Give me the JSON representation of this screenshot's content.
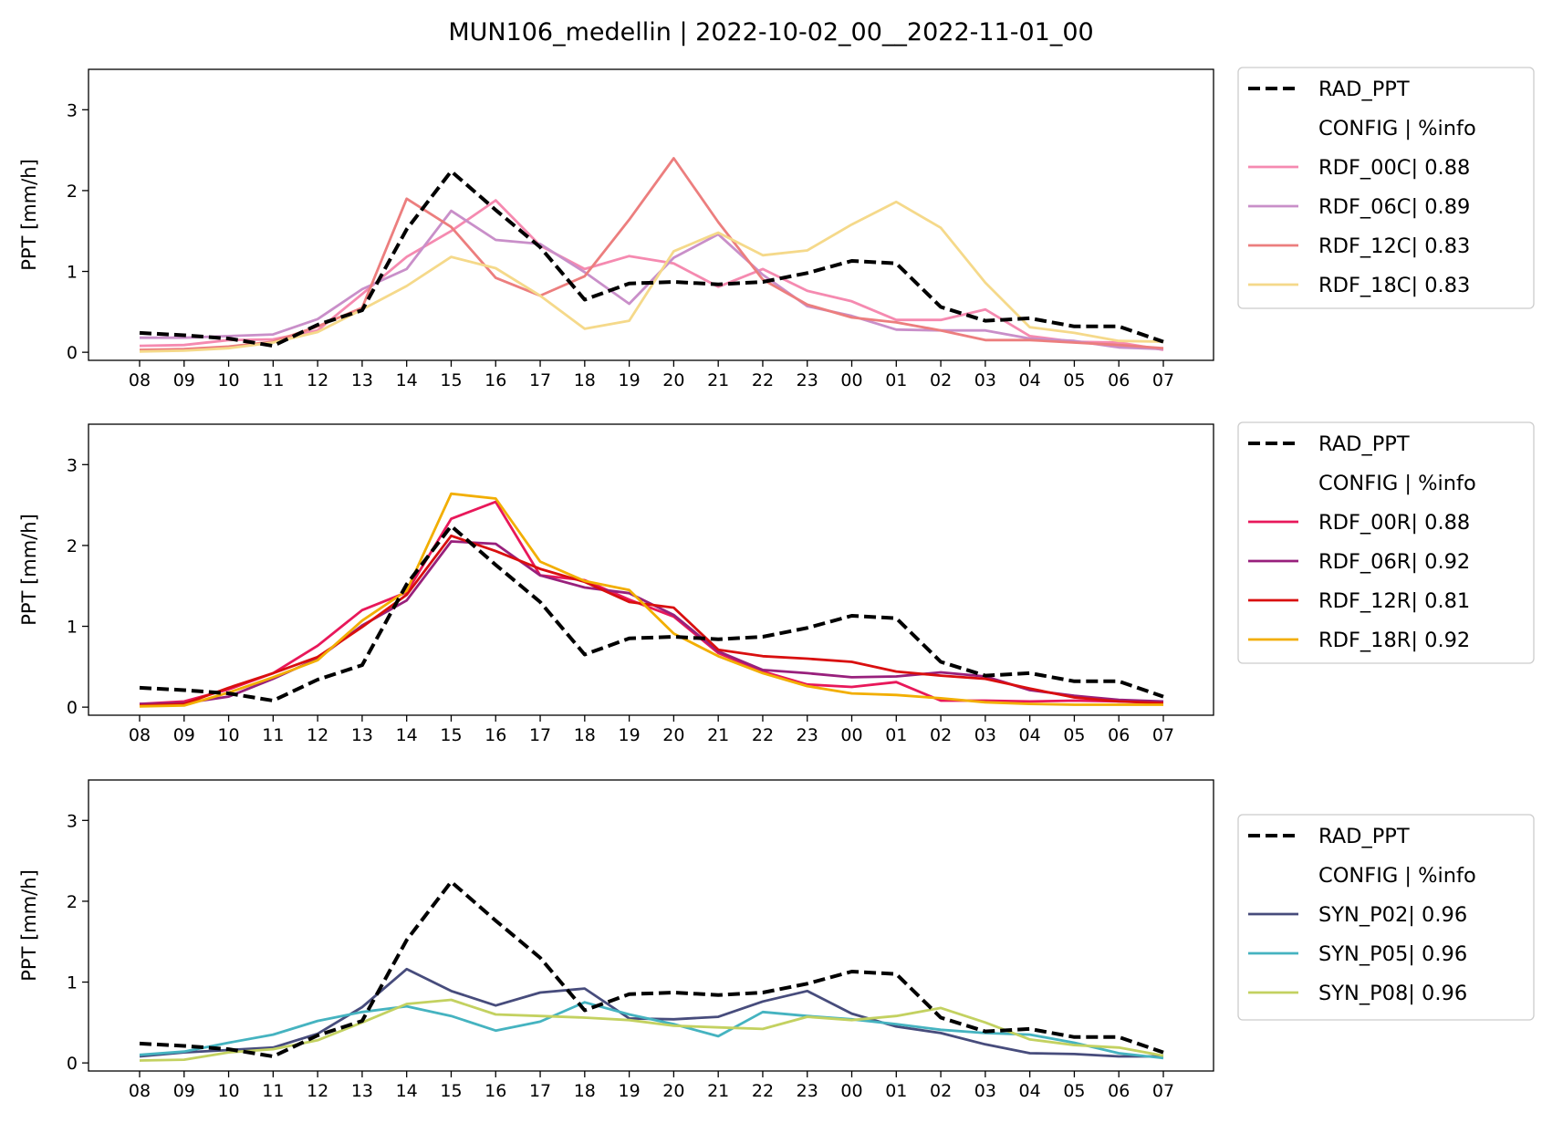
{
  "figure_title": "MUN106_medellin | 2022-10-02_00__2022-11-01_00",
  "chart_data": [
    {
      "type": "line",
      "ylabel": "PPT [mm/h]",
      "ylim": [
        -0.1,
        3.5
      ],
      "yticks": [
        "0",
        "1",
        "2",
        "3"
      ],
      "categories": [
        "08",
        "09",
        "10",
        "11",
        "12",
        "13",
        "14",
        "15",
        "16",
        "17",
        "18",
        "19",
        "20",
        "21",
        "22",
        "23",
        "00",
        "01",
        "02",
        "03",
        "04",
        "05",
        "06",
        "07"
      ],
      "legend_header": "CONFIG  | %info",
      "legend_placement": "outside-right",
      "series": [
        {
          "name": "RAD_PPT",
          "color": "#000000",
          "dashed": true,
          "values": [
            0.24,
            0.21,
            0.17,
            0.08,
            0.34,
            0.52,
            1.52,
            2.24,
            1.76,
            1.3,
            0.65,
            0.85,
            0.87,
            0.84,
            0.87,
            0.98,
            1.13,
            1.1,
            0.56,
            0.39,
            0.42,
            0.32,
            0.32,
            0.13
          ]
        },
        {
          "name": "RDF_00C| 0.88",
          "color": "#f58ab0",
          "values": [
            0.08,
            0.09,
            0.15,
            0.16,
            0.27,
            0.72,
            1.18,
            1.5,
            1.88,
            1.32,
            1.03,
            1.19,
            1.1,
            0.81,
            1.03,
            0.76,
            0.63,
            0.4,
            0.4,
            0.53,
            0.2,
            0.13,
            0.12,
            0.03
          ]
        },
        {
          "name": "RDF_06C| 0.89",
          "color": "#c98fc9",
          "values": [
            0.18,
            0.18,
            0.2,
            0.22,
            0.41,
            0.78,
            1.03,
            1.75,
            1.39,
            1.34,
            0.99,
            0.6,
            1.17,
            1.46,
            0.96,
            0.57,
            0.45,
            0.28,
            0.27,
            0.27,
            0.17,
            0.14,
            0.06,
            0.04
          ]
        },
        {
          "name": "RDF_12C| 0.83",
          "color": "#ec7e7e",
          "values": [
            0.03,
            0.04,
            0.07,
            0.13,
            0.32,
            0.55,
            1.9,
            1.55,
            0.92,
            0.7,
            0.94,
            1.64,
            2.4,
            1.61,
            0.9,
            0.59,
            0.43,
            0.37,
            0.27,
            0.15,
            0.15,
            0.12,
            0.09,
            0.05
          ]
        },
        {
          "name": "RDF_18C| 0.83",
          "color": "#f5d98a",
          "values": [
            0.01,
            0.02,
            0.05,
            0.12,
            0.25,
            0.53,
            0.82,
            1.18,
            1.04,
            0.7,
            0.29,
            0.39,
            1.25,
            1.48,
            1.2,
            1.26,
            1.58,
            1.86,
            1.54,
            0.86,
            0.31,
            0.24,
            0.14,
            0.13
          ]
        }
      ]
    },
    {
      "type": "line",
      "ylabel": "PPT [mm/h]",
      "ylim": [
        -0.1,
        3.5
      ],
      "yticks": [
        "0",
        "1",
        "2",
        "3"
      ],
      "categories": [
        "08",
        "09",
        "10",
        "11",
        "12",
        "13",
        "14",
        "15",
        "16",
        "17",
        "18",
        "19",
        "20",
        "21",
        "22",
        "23",
        "00",
        "01",
        "02",
        "03",
        "04",
        "05",
        "06",
        "07"
      ],
      "legend_header": "CONFIG  | %info",
      "legend_placement": "outside-right",
      "series": [
        {
          "name": "RAD_PPT",
          "color": "#000000",
          "dashed": true,
          "values": [
            0.24,
            0.21,
            0.17,
            0.08,
            0.34,
            0.52,
            1.52,
            2.24,
            1.76,
            1.3,
            0.65,
            0.85,
            0.87,
            0.84,
            0.87,
            0.98,
            1.13,
            1.1,
            0.56,
            0.39,
            0.42,
            0.32,
            0.32,
            0.13
          ]
        },
        {
          "name": "RDF_00R| 0.88",
          "color": "#e8185a",
          "values": [
            0.04,
            0.07,
            0.22,
            0.42,
            0.76,
            1.2,
            1.42,
            2.33,
            2.54,
            1.63,
            1.57,
            1.33,
            1.12,
            0.67,
            0.44,
            0.28,
            0.25,
            0.31,
            0.08,
            0.08,
            0.07,
            0.08,
            0.07,
            0.06
          ]
        },
        {
          "name": "RDF_06R| 0.92",
          "color": "#98207c",
          "values": [
            0.04,
            0.05,
            0.13,
            0.35,
            0.6,
            1.01,
            1.32,
            2.05,
            2.02,
            1.63,
            1.48,
            1.41,
            1.14,
            0.69,
            0.46,
            0.42,
            0.37,
            0.38,
            0.43,
            0.38,
            0.21,
            0.14,
            0.09,
            0.07
          ]
        },
        {
          "name": "RDF_12R| 0.81",
          "color": "#d90f0f",
          "values": [
            0.02,
            0.04,
            0.24,
            0.42,
            0.62,
            0.99,
            1.39,
            2.12,
            1.93,
            1.71,
            1.55,
            1.3,
            1.23,
            0.71,
            0.63,
            0.6,
            0.56,
            0.44,
            0.39,
            0.35,
            0.23,
            0.12,
            0.07,
            0.05
          ]
        },
        {
          "name": "RDF_18R| 0.92",
          "color": "#f2ae00",
          "values": [
            0.01,
            0.02,
            0.18,
            0.37,
            0.58,
            1.07,
            1.44,
            2.64,
            2.58,
            1.8,
            1.56,
            1.45,
            0.91,
            0.63,
            0.42,
            0.26,
            0.17,
            0.15,
            0.11,
            0.06,
            0.04,
            0.03,
            0.03,
            0.03
          ]
        }
      ]
    },
    {
      "type": "line",
      "ylabel": "PPT [mm/h]",
      "ylim": [
        -0.1,
        3.5
      ],
      "yticks": [
        "0",
        "1",
        "2",
        "3"
      ],
      "categories": [
        "08",
        "09",
        "10",
        "11",
        "12",
        "13",
        "14",
        "15",
        "16",
        "17",
        "18",
        "19",
        "20",
        "21",
        "22",
        "23",
        "00",
        "01",
        "02",
        "03",
        "04",
        "05",
        "06",
        "07"
      ],
      "legend_header": "CONFIG  | %info",
      "legend_placement": "outside-right",
      "series": [
        {
          "name": "RAD_PPT",
          "color": "#000000",
          "dashed": true,
          "values": [
            0.24,
            0.21,
            0.17,
            0.08,
            0.34,
            0.52,
            1.52,
            2.24,
            1.76,
            1.3,
            0.65,
            0.85,
            0.87,
            0.84,
            0.87,
            0.98,
            1.13,
            1.1,
            0.56,
            0.39,
            0.42,
            0.32,
            0.32,
            0.13
          ]
        },
        {
          "name": "SYN_P02| 0.96",
          "color": "#474c7c",
          "values": [
            0.08,
            0.13,
            0.16,
            0.19,
            0.36,
            0.69,
            1.16,
            0.89,
            0.71,
            0.87,
            0.92,
            0.55,
            0.54,
            0.57,
            0.76,
            0.89,
            0.61,
            0.45,
            0.37,
            0.23,
            0.12,
            0.11,
            0.08,
            0.08
          ]
        },
        {
          "name": "SYN_P05| 0.96",
          "color": "#45b3c0",
          "values": [
            0.1,
            0.14,
            0.25,
            0.35,
            0.52,
            0.63,
            0.7,
            0.58,
            0.4,
            0.51,
            0.75,
            0.6,
            0.48,
            0.33,
            0.63,
            0.58,
            0.54,
            0.48,
            0.41,
            0.37,
            0.35,
            0.25,
            0.12,
            0.06
          ]
        },
        {
          "name": "SYN_P08| 0.96",
          "color": "#c3d160",
          "values": [
            0.03,
            0.04,
            0.13,
            0.17,
            0.28,
            0.5,
            0.73,
            0.78,
            0.6,
            0.58,
            0.56,
            0.53,
            0.46,
            0.44,
            0.42,
            0.57,
            0.53,
            0.58,
            0.68,
            0.5,
            0.29,
            0.22,
            0.19,
            0.09
          ]
        }
      ]
    }
  ]
}
